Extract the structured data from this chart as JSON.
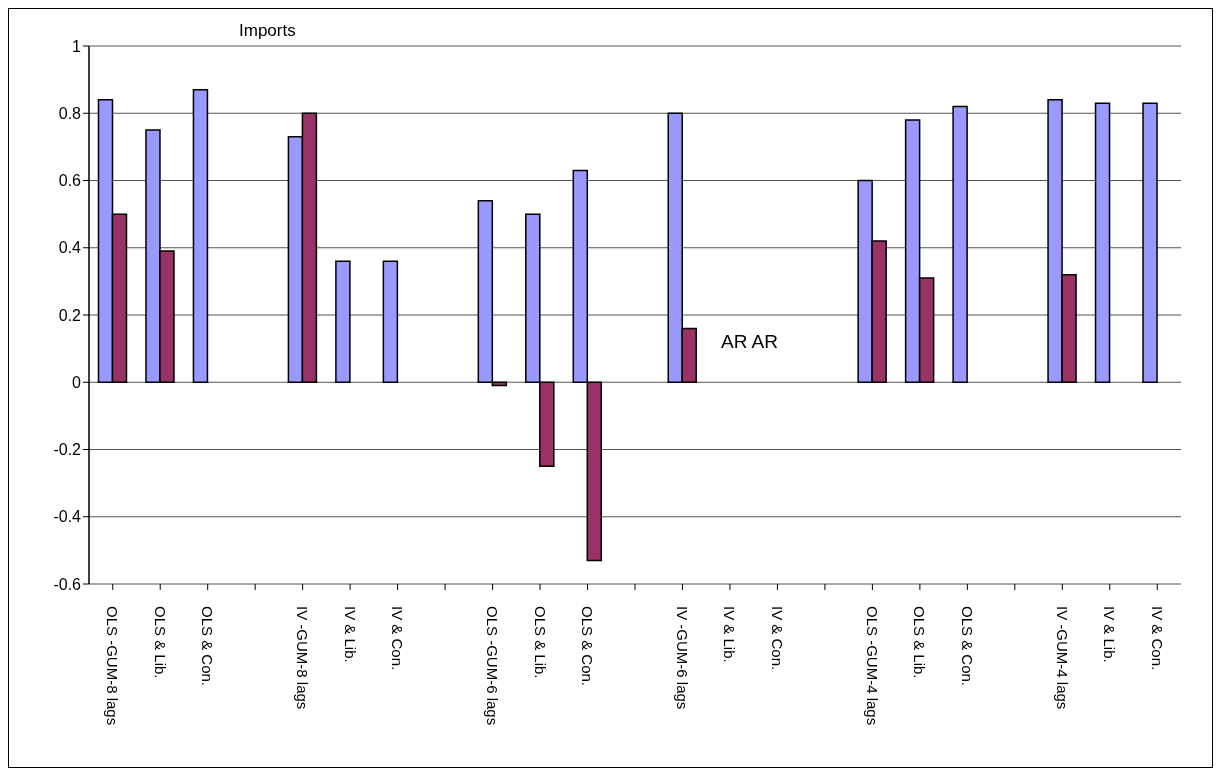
{
  "chart_data": {
    "type": "bar",
    "title": "Imports",
    "categories": [
      "OLS -GUM-8 lags",
      "OLS & Lib.",
      "OLS & Con.",
      null,
      "IV -GUM-8 lags",
      "IV & Lib.",
      "IV & Con.",
      null,
      "OLS -GUM-6 lags",
      "OLS & Lib.",
      "OLS & Con.",
      null,
      "IV -GUM-6 lags",
      "IV & Lib.",
      "IV & Con.",
      null,
      "OLS -GUM-4 lags",
      "OLS & Lib.",
      "OLS & Con.",
      null,
      "IV -GUM-4 lags",
      "IV & Lib.",
      "IV & Con."
    ],
    "series": [
      {
        "color": "#9999ff",
        "values": [
          0.84,
          0.75,
          0.87,
          null,
          0.73,
          0.36,
          0.36,
          null,
          0.54,
          0.5,
          0.63,
          null,
          0.8,
          null,
          null,
          null,
          0.6,
          0.78,
          0.82,
          null,
          0.84,
          0.83,
          0.83
        ]
      },
      {
        "color": "#993366",
        "values": [
          0.5,
          0.39,
          null,
          null,
          0.8,
          null,
          null,
          null,
          -0.01,
          -0.25,
          -0.53,
          null,
          0.16,
          null,
          null,
          null,
          0.42,
          0.31,
          null,
          null,
          0.32,
          null,
          null
        ]
      }
    ],
    "ylim": [
      -0.6,
      1
    ],
    "yticks": [
      -0.6,
      -0.4,
      -0.2,
      0,
      0.2,
      0.4,
      0.6,
      0.8,
      1
    ],
    "grid": "y",
    "legend": false,
    "annotations": [
      "AR  AR"
    ]
  }
}
